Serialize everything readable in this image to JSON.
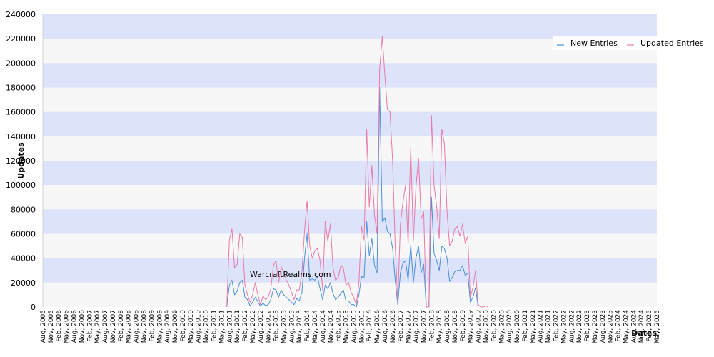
{
  "chart_data": {
    "type": "line",
    "title": "",
    "xlabel": "Dates",
    "ylabel": "Updates",
    "ylim": [
      0,
      240000
    ],
    "yticks": [
      "0",
      "20000",
      "40000",
      "60000",
      "80000",
      "100000",
      "120000",
      "140000",
      "160000",
      "180000",
      "200000",
      "220000",
      "240000"
    ],
    "x_tick_labels": [
      "Aug, 2005",
      "Nov, 2005",
      "Feb, 2006",
      "May, 2006",
      "Aug, 2006",
      "Nov, 2006",
      "Feb, 2007",
      "May, 2007",
      "Aug, 2007",
      "Nov, 2007",
      "Feb, 2008",
      "May, 2008",
      "Aug, 2008",
      "Nov, 2008",
      "Feb, 2009",
      "May, 2009",
      "Aug, 2009",
      "Nov, 2009",
      "Feb, 2010",
      "May, 2010",
      "Aug, 2010",
      "Nov, 2010",
      "Feb, 2011",
      "May, 2011",
      "Aug, 2011",
      "Nov, 2011",
      "Feb, 2012",
      "May, 2012",
      "Aug, 2012",
      "Nov, 2012",
      "Feb, 2013",
      "May, 2013",
      "Aug, 2013",
      "Nov, 2013",
      "Feb, 2014",
      "May, 2014",
      "Aug, 2014",
      "Nov, 2014",
      "Feb, 2015",
      "May, 2015",
      "Aug, 2015",
      "Nov, 2015",
      "Feb, 2016",
      "May, 2016",
      "Aug, 2016",
      "Nov, 2016",
      "Feb, 2017",
      "May, 2017",
      "Aug, 2017",
      "Nov, 2017",
      "Feb, 2018",
      "May, 2018",
      "Aug, 2018",
      "Nov, 2018",
      "Feb, 2019",
      "May, 2019",
      "Aug, 2019",
      "Nov, 2019",
      "Feb, 2020",
      "May, 2020",
      "Aug, 2020",
      "Nov, 2020",
      "Feb, 2021",
      "May, 2021",
      "Aug, 2021",
      "Nov, 2021",
      "Feb, 2022",
      "May, 2022",
      "Aug, 2022",
      "Nov, 2022",
      "Feb, 2023",
      "May, 2023",
      "Aug, 2023",
      "Nov, 2023",
      "Feb, 2024",
      "May, 2024",
      "Aug, 2024",
      "Nov, 2024",
      "Feb, 2025",
      "May, 2025"
    ],
    "legend_position": "top-right",
    "grid": "alternating horizontal bands",
    "band_colors": [
      "#dde3fb",
      "#f7f7f7"
    ],
    "watermark": "WarcraftRealms.com",
    "series": [
      {
        "name": "New Entries",
        "color": "#4a90d9",
        "points": [
          [
            "Jul, 2011",
            0
          ],
          [
            "Aug, 2011",
            18000
          ],
          [
            "Sep, 2011",
            22000
          ],
          [
            "Oct, 2011",
            10000
          ],
          [
            "Nov, 2011",
            13000
          ],
          [
            "Dec, 2011",
            20000
          ],
          [
            "Jan, 2012",
            22000
          ],
          [
            "Feb, 2012",
            8000
          ],
          [
            "Mar, 2012",
            6000
          ],
          [
            "Apr, 2012",
            1000
          ],
          [
            "May, 2012",
            4000
          ],
          [
            "Jun, 2012",
            8000
          ],
          [
            "Jul, 2012",
            4000
          ],
          [
            "Aug, 2012",
            1000
          ],
          [
            "Sep, 2012",
            3000
          ],
          [
            "Oct, 2012",
            1000
          ],
          [
            "Nov, 2012",
            2000
          ],
          [
            "Dec, 2012",
            6000
          ],
          [
            "Jan, 2013",
            15000
          ],
          [
            "Feb, 2013",
            14000
          ],
          [
            "Mar, 2013",
            8000
          ],
          [
            "Apr, 2013",
            14000
          ],
          [
            "May, 2013",
            10000
          ],
          [
            "Jun, 2013",
            8000
          ],
          [
            "Jul, 2013",
            6000
          ],
          [
            "Aug, 2013",
            4000
          ],
          [
            "Sep, 2013",
            2000
          ],
          [
            "Oct, 2013",
            7000
          ],
          [
            "Nov, 2013",
            5000
          ],
          [
            "Dec, 2013",
            12000
          ],
          [
            "Jan, 2014",
            40000
          ],
          [
            "Feb, 2014",
            60000
          ],
          [
            "Mar, 2014",
            22000
          ],
          [
            "Apr, 2014",
            23000
          ],
          [
            "May, 2014",
            22000
          ],
          [
            "Jun, 2014",
            25000
          ],
          [
            "Jul, 2014",
            15000
          ],
          [
            "Aug, 2014",
            6000
          ],
          [
            "Sep, 2014",
            18000
          ],
          [
            "Oct, 2014",
            15000
          ],
          [
            "Nov, 2014",
            20000
          ],
          [
            "Dec, 2014",
            11000
          ],
          [
            "Jan, 2015",
            6000
          ],
          [
            "Feb, 2015",
            8000
          ],
          [
            "Mar, 2015",
            11000
          ],
          [
            "Apr, 2015",
            14000
          ],
          [
            "May, 2015",
            5000
          ],
          [
            "Jun, 2015",
            5000
          ],
          [
            "Jul, 2015",
            2000
          ],
          [
            "Aug, 2015",
            2000
          ],
          [
            "Sep, 2015",
            0
          ],
          [
            "Oct, 2015",
            10000
          ],
          [
            "Nov, 2015",
            25000
          ],
          [
            "Dec, 2015",
            24000
          ],
          [
            "Jan, 2016",
            70000
          ],
          [
            "Feb, 2016",
            42000
          ],
          [
            "Mar, 2016",
            56000
          ],
          [
            "Apr, 2016",
            34000
          ],
          [
            "May, 2016",
            28000
          ],
          [
            "Jun, 2016",
            180000
          ],
          [
            "Jul, 2016",
            70000
          ],
          [
            "Aug, 2016",
            73000
          ],
          [
            "Sep, 2016",
            62000
          ],
          [
            "Oct, 2016",
            60000
          ],
          [
            "Nov, 2016",
            48000
          ],
          [
            "Dec, 2016",
            22000
          ],
          [
            "Jan, 2017",
            2000
          ],
          [
            "Feb, 2017",
            28000
          ],
          [
            "Mar, 2017",
            36000
          ],
          [
            "Apr, 2017",
            38000
          ],
          [
            "May, 2017",
            22000
          ],
          [
            "Jun, 2017",
            51000
          ],
          [
            "Jul, 2017",
            20000
          ],
          [
            "Aug, 2017",
            40000
          ],
          [
            "Sep, 2017",
            50000
          ],
          [
            "Oct, 2017",
            28000
          ],
          [
            "Nov, 2017",
            35000
          ],
          [
            "Dec, 2017",
            0
          ],
          [
            "Jan, 2018",
            0
          ],
          [
            "Feb, 2018",
            90000
          ],
          [
            "Mar, 2018",
            44000
          ],
          [
            "Apr, 2018",
            38000
          ],
          [
            "May, 2018",
            30000
          ],
          [
            "Jun, 2018",
            50000
          ],
          [
            "Jul, 2018",
            48000
          ],
          [
            "Aug, 2018",
            40000
          ],
          [
            "Sep, 2018",
            21000
          ],
          [
            "Oct, 2018",
            24000
          ],
          [
            "Nov, 2018",
            29000
          ],
          [
            "Dec, 2018",
            30000
          ],
          [
            "Jan, 2019",
            30000
          ],
          [
            "Feb, 2019",
            34000
          ],
          [
            "Mar, 2019",
            26000
          ],
          [
            "Apr, 2019",
            28000
          ],
          [
            "May, 2019",
            4000
          ],
          [
            "Jun, 2019",
            8000
          ],
          [
            "Jul, 2019",
            16000
          ],
          [
            "Aug, 2019",
            0
          ]
        ]
      },
      {
        "name": "Updated Entries",
        "color": "#e87aa8",
        "points": [
          [
            "Jul, 2011",
            0
          ],
          [
            "Aug, 2011",
            55000
          ],
          [
            "Sep, 2011",
            64000
          ],
          [
            "Oct, 2011",
            32000
          ],
          [
            "Nov, 2011",
            35000
          ],
          [
            "Dec, 2011",
            60000
          ],
          [
            "Jan, 2012",
            57000
          ],
          [
            "Feb, 2012",
            18000
          ],
          [
            "Mar, 2012",
            10000
          ],
          [
            "Apr, 2012",
            4000
          ],
          [
            "May, 2012",
            10000
          ],
          [
            "Jun, 2012",
            20000
          ],
          [
            "Jul, 2012",
            10000
          ],
          [
            "Aug, 2012",
            2000
          ],
          [
            "Sep, 2012",
            9000
          ],
          [
            "Oct, 2012",
            6000
          ],
          [
            "Nov, 2012",
            8000
          ],
          [
            "Dec, 2012",
            15000
          ],
          [
            "Jan, 2013",
            34000
          ],
          [
            "Feb, 2013",
            38000
          ],
          [
            "Mar, 2013",
            20000
          ],
          [
            "Apr, 2013",
            33000
          ],
          [
            "May, 2013",
            28000
          ],
          [
            "Jun, 2013",
            22000
          ],
          [
            "Jul, 2013",
            18000
          ],
          [
            "Aug, 2013",
            12000
          ],
          [
            "Sep, 2013",
            6000
          ],
          [
            "Oct, 2013",
            14000
          ],
          [
            "Nov, 2013",
            14000
          ],
          [
            "Dec, 2013",
            28000
          ],
          [
            "Jan, 2014",
            62000
          ],
          [
            "Feb, 2014",
            87000
          ],
          [
            "Mar, 2014",
            50000
          ],
          [
            "Apr, 2014",
            40000
          ],
          [
            "May, 2014",
            46000
          ],
          [
            "Jun, 2014",
            48000
          ],
          [
            "Jul, 2014",
            38000
          ],
          [
            "Aug, 2014",
            14000
          ],
          [
            "Sep, 2014",
            70000
          ],
          [
            "Oct, 2014",
            54000
          ],
          [
            "Nov, 2014",
            68000
          ],
          [
            "Dec, 2014",
            32000
          ],
          [
            "Jan, 2015",
            22000
          ],
          [
            "Feb, 2015",
            24000
          ],
          [
            "Mar, 2015",
            34000
          ],
          [
            "Apr, 2015",
            32000
          ],
          [
            "May, 2015",
            18000
          ],
          [
            "Jun, 2015",
            20000
          ],
          [
            "Jul, 2015",
            12000
          ],
          [
            "Aug, 2015",
            8000
          ],
          [
            "Sep, 2015",
            2000
          ],
          [
            "Oct, 2015",
            20000
          ],
          [
            "Nov, 2015",
            66000
          ],
          [
            "Dec, 2015",
            55000
          ],
          [
            "Jan, 2016",
            146000
          ],
          [
            "Feb, 2016",
            82000
          ],
          [
            "Mar, 2016",
            116000
          ],
          [
            "Apr, 2016",
            75000
          ],
          [
            "May, 2016",
            60000
          ],
          [
            "Jun, 2016",
            195000
          ],
          [
            "Jul, 2016",
            222000
          ],
          [
            "Aug, 2016",
            190000
          ],
          [
            "Sep, 2016",
            162000
          ],
          [
            "Oct, 2016",
            160000
          ],
          [
            "Nov, 2016",
            120000
          ],
          [
            "Dec, 2016",
            50000
          ],
          [
            "Jan, 2017",
            4000
          ],
          [
            "Feb, 2017",
            68000
          ],
          [
            "Mar, 2017",
            86000
          ],
          [
            "Apr, 2017",
            100000
          ],
          [
            "May, 2017",
            52000
          ],
          [
            "Jun, 2017",
            131000
          ],
          [
            "Jul, 2017",
            54000
          ],
          [
            "Aug, 2017",
            98000
          ],
          [
            "Sep, 2017",
            122000
          ],
          [
            "Oct, 2017",
            72000
          ],
          [
            "Nov, 2017",
            78000
          ],
          [
            "Dec, 2017",
            0
          ],
          [
            "Jan, 2018",
            0
          ],
          [
            "Feb, 2018",
            157000
          ],
          [
            "Mar, 2018",
            100000
          ],
          [
            "Apr, 2018",
            82000
          ],
          [
            "May, 2018",
            56000
          ],
          [
            "Jun, 2018",
            146000
          ],
          [
            "Jul, 2018",
            134000
          ],
          [
            "Aug, 2018",
            78000
          ],
          [
            "Sep, 2018",
            50000
          ],
          [
            "Oct, 2018",
            54000
          ],
          [
            "Nov, 2018",
            64000
          ],
          [
            "Dec, 2018",
            66000
          ],
          [
            "Jan, 2019",
            58000
          ],
          [
            "Feb, 2019",
            68000
          ],
          [
            "Mar, 2019",
            52000
          ],
          [
            "Apr, 2019",
            58000
          ],
          [
            "May, 2019",
            8000
          ],
          [
            "Jun, 2019",
            16000
          ],
          [
            "Jul, 2019",
            30000
          ],
          [
            "Aug, 2019",
            2000
          ],
          [
            "Sep, 2019",
            0
          ],
          [
            "Oct, 2019",
            0
          ],
          [
            "Nov, 2019",
            1000
          ],
          [
            "Dec, 2019",
            0
          ]
        ]
      }
    ]
  }
}
